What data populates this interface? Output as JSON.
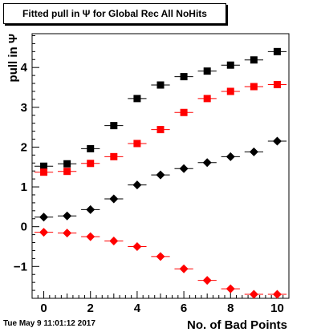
{
  "title": "Fitted pull in  Ψ  for Global Rec All NoHits",
  "timestamp": "Tue May  9 11:01:12 2017",
  "chart_data": {
    "type": "scatter",
    "title": "Fitted pull in  Ψ  for Global Rec All NoHits",
    "xlabel": "No. of Bad Points",
    "ylabel": "pull in  Ψ",
    "xlim": [
      -0.5,
      10.5
    ],
    "ylim": [
      -1.8,
      4.85
    ],
    "x_ticks": [
      0,
      2,
      4,
      6,
      8,
      10
    ],
    "y_ticks": [
      -1,
      0,
      1,
      2,
      3,
      4
    ],
    "x_error": 0.4,
    "legend": "none",
    "series": [
      {
        "marker": "square",
        "color": "#000000",
        "x": [
          0,
          1,
          2,
          3,
          4,
          5,
          6,
          7,
          8,
          9,
          10
        ],
        "y": [
          1.52,
          1.58,
          1.96,
          2.54,
          3.22,
          3.56,
          3.77,
          3.91,
          4.06,
          4.19,
          4.4
        ]
      },
      {
        "marker": "square",
        "color": "#ff0000",
        "x": [
          0,
          1,
          2,
          3,
          4,
          5,
          6,
          7,
          8,
          9,
          10
        ],
        "y": [
          1.37,
          1.39,
          1.59,
          1.76,
          2.09,
          2.44,
          2.87,
          3.22,
          3.4,
          3.52,
          3.57
        ]
      },
      {
        "marker": "diamond",
        "color": "#000000",
        "x": [
          0,
          1,
          2,
          3,
          4,
          5,
          6,
          7,
          8,
          9,
          10
        ],
        "y": [
          0.24,
          0.27,
          0.43,
          0.7,
          1.05,
          1.3,
          1.46,
          1.61,
          1.76,
          1.88,
          2.15
        ]
      },
      {
        "marker": "diamond",
        "color": "#ff0000",
        "x": [
          0,
          1,
          2,
          3,
          4,
          5,
          6,
          7,
          8,
          9,
          10
        ],
        "y": [
          -0.14,
          -0.16,
          -0.25,
          -0.36,
          -0.5,
          -0.75,
          -1.06,
          -1.35,
          -1.56,
          -1.7,
          -1.7
        ]
      }
    ]
  }
}
